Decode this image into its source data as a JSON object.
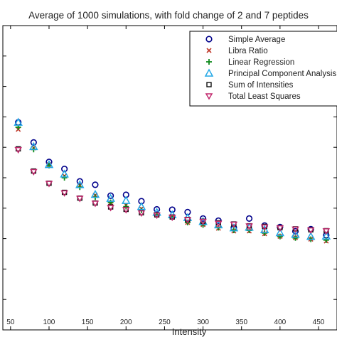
{
  "chart_data": {
    "type": "scatter",
    "title": "Average of 1000 simulations, with fold change of 2 and 7 peptides",
    "xlabel": "Intensity",
    "ylabel": "",
    "xlim": [
      40,
      474
    ],
    "xticks": [
      50,
      100,
      150,
      200,
      250,
      300,
      350,
      400,
      450
    ],
    "x_tick_labels": [
      "50",
      "100",
      "150",
      "200",
      "250",
      "300",
      "350",
      "400",
      "450"
    ],
    "ylim": [
      0,
      1
    ],
    "grid": false,
    "legend_position": "top-right",
    "x": [
      60,
      80,
      100,
      120,
      140,
      160,
      180,
      200,
      220,
      240,
      260,
      280,
      300,
      320,
      340,
      360,
      380,
      400,
      420,
      440,
      460
    ],
    "series": [
      {
        "name": "Simple Average",
        "marker": "circle",
        "color": "#00008b",
        "values": [
          0.682,
          0.616,
          0.552,
          0.529,
          0.488,
          0.477,
          0.441,
          0.444,
          0.423,
          0.396,
          0.395,
          0.387,
          0.366,
          0.359,
          0.336,
          0.366,
          0.343,
          0.338,
          0.324,
          0.331,
          0.311
        ]
      },
      {
        "name": "Libra Ratio",
        "marker": "x",
        "color": "#c0392b",
        "values": [
          0.659,
          0.598,
          0.543,
          0.506,
          0.474,
          0.443,
          0.418,
          0.41,
          0.398,
          0.382,
          0.371,
          0.353,
          0.346,
          0.334,
          0.325,
          0.325,
          0.316,
          0.307,
          0.303,
          0.298,
          0.292
        ]
      },
      {
        "name": "Linear Regression",
        "marker": "plus",
        "color": "#0e8a1c",
        "values": [
          0.666,
          0.593,
          0.54,
          0.5,
          0.469,
          0.436,
          0.419,
          0.405,
          0.393,
          0.378,
          0.37,
          0.353,
          0.345,
          0.336,
          0.327,
          0.327,
          0.318,
          0.307,
          0.302,
          0.298,
          0.295
        ]
      },
      {
        "name": "Principal Component Analysis",
        "marker": "triangle-up",
        "color": "#22a7e6",
        "values": [
          0.682,
          0.602,
          0.543,
          0.512,
          0.477,
          0.445,
          0.432,
          0.425,
          0.405,
          0.386,
          0.378,
          0.369,
          0.356,
          0.345,
          0.335,
          0.337,
          0.329,
          0.319,
          0.314,
          0.307,
          0.308
        ]
      },
      {
        "name": "Sum of Intensities",
        "marker": "square",
        "color": "#111111",
        "values": [
          0.595,
          0.522,
          0.482,
          0.452,
          0.433,
          0.417,
          0.404,
          0.396,
          0.385,
          0.378,
          0.371,
          0.363,
          0.357,
          0.352,
          0.348,
          0.342,
          0.34,
          0.336,
          0.332,
          0.329,
          0.326
        ]
      },
      {
        "name": "Total Least Squares",
        "marker": "triangle-down",
        "color": "#c22a6e",
        "values": [
          0.592,
          0.52,
          0.481,
          0.45,
          0.432,
          0.416,
          0.402,
          0.395,
          0.384,
          0.377,
          0.37,
          0.362,
          0.356,
          0.35,
          0.347,
          0.341,
          0.338,
          0.335,
          0.331,
          0.328,
          0.325
        ]
      }
    ]
  }
}
